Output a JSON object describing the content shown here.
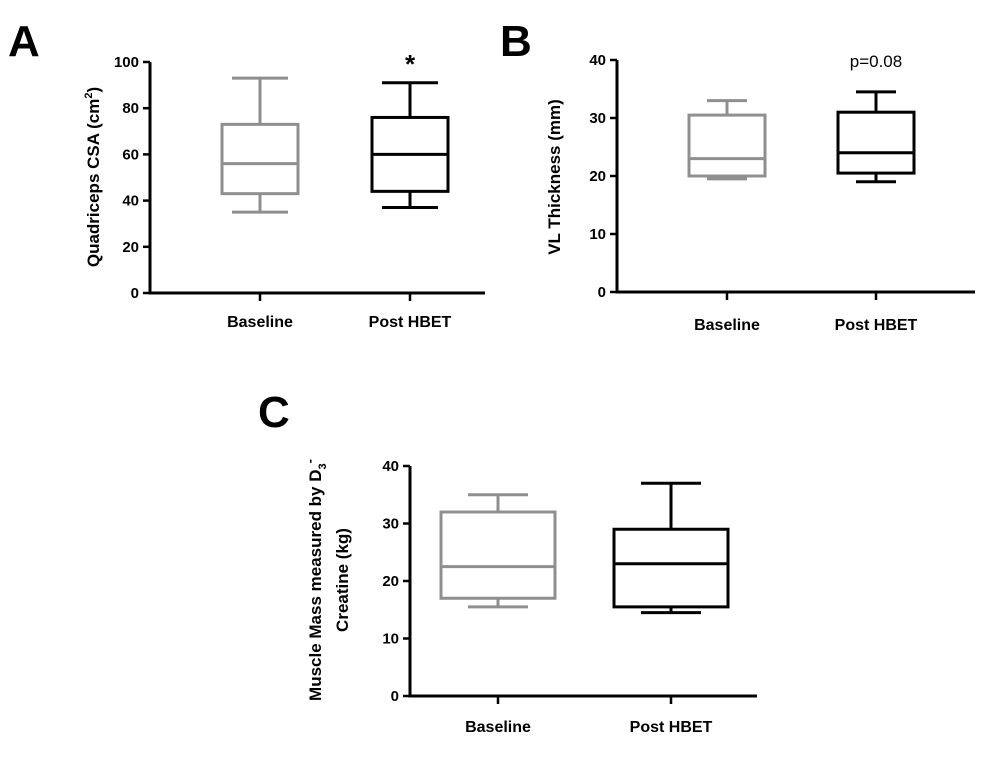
{
  "colors": {
    "baseline": "#8f8f8f",
    "post": "#000000",
    "axis": "#000000"
  },
  "chart_data": [
    {
      "panel": "A",
      "type": "box",
      "ylabel_main": "Quadriceps CSA (cm",
      "ylabel_sup": "2",
      "ylabel_close": ")",
      "ylim": [
        0,
        100
      ],
      "yticks": [
        0,
        20,
        40,
        60,
        80,
        100
      ],
      "categories": [
        "Baseline",
        "Post HBET"
      ],
      "boxes": [
        {
          "category": "Baseline",
          "color": "baseline",
          "min": 35,
          "q1": 43,
          "median": 56,
          "q3": 73,
          "max": 93
        },
        {
          "category": "Post HBET",
          "color": "post",
          "min": 37,
          "q1": 44,
          "median": 60,
          "q3": 76,
          "max": 91
        }
      ],
      "annotation": {
        "text": "*",
        "category_index": 1
      }
    },
    {
      "panel": "B",
      "type": "box",
      "ylabel_main": "VL Thickness (mm)",
      "ylim": [
        0,
        40
      ],
      "yticks": [
        0,
        10,
        20,
        30,
        40
      ],
      "categories": [
        "Baseline",
        "Post HBET"
      ],
      "boxes": [
        {
          "category": "Baseline",
          "color": "baseline",
          "min": 19.5,
          "q1": 20,
          "median": 23,
          "q3": 30.5,
          "max": 33
        },
        {
          "category": "Post HBET",
          "color": "post",
          "min": 19,
          "q1": 20.5,
          "median": 24,
          "q3": 31,
          "max": 34.5
        }
      ],
      "annotation": {
        "text": "p=0.08",
        "category_index": 1
      }
    },
    {
      "panel": "C",
      "type": "box",
      "ylabel_line1_main": "Muscle Mass measured by D",
      "ylabel_line1_sub": "3",
      "ylabel_line1_sup": "-",
      "ylabel_line2": "Creatine (kg)",
      "ylim": [
        0,
        40
      ],
      "yticks": [
        0,
        10,
        20,
        30,
        40
      ],
      "categories": [
        "Baseline",
        "Post HBET"
      ],
      "boxes": [
        {
          "category": "Baseline",
          "color": "baseline",
          "min": 15.5,
          "q1": 17,
          "median": 22.5,
          "q3": 32,
          "max": 35
        },
        {
          "category": "Post HBET",
          "color": "post",
          "min": 14.5,
          "q1": 15.5,
          "median": 23,
          "q3": 29,
          "max": 37
        }
      ]
    }
  ]
}
